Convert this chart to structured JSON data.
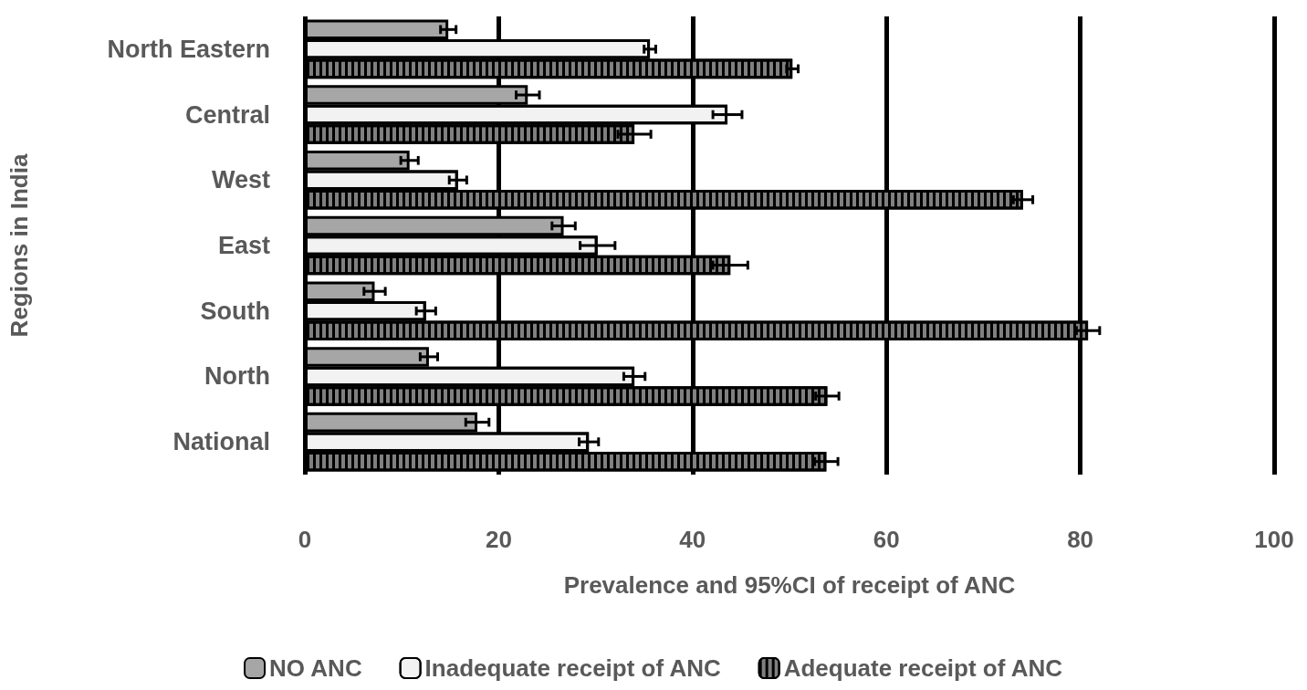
{
  "chart_data": {
    "type": "bar",
    "orientation": "horizontal",
    "xlabel": "Prevalence and 95%CI of receipt of ANC",
    "ylabel": "Regions in India",
    "categories": [
      "North Eastern",
      "Central",
      "West",
      "East",
      "South",
      "North",
      "National"
    ],
    "series": [
      {
        "name": "NO ANC",
        "color": "#a6a6a6",
        "values": [
          14.8,
          23.0,
          10.8,
          26.7,
          7.2,
          12.8,
          17.8
        ],
        "errors": [
          0.8,
          1.2,
          0.9,
          1.2,
          1.1,
          0.9,
          1.2
        ]
      },
      {
        "name": "Inadequate receipt of ANC",
        "color": "#f2f2f2",
        "values": [
          35.6,
          43.6,
          15.8,
          30.2,
          12.5,
          34.0,
          29.3
        ],
        "errors": [
          0.6,
          1.5,
          0.9,
          1.8,
          1.0,
          1.1,
          1.0
        ]
      },
      {
        "name": "Adequate receipt of ANC",
        "color": "#808080",
        "values": [
          50.3,
          34.0,
          74.1,
          43.9,
          80.8,
          53.9,
          53.8
        ],
        "errors": [
          0.6,
          1.7,
          1.0,
          1.8,
          1.2,
          1.2,
          1.2
        ]
      }
    ],
    "xlim": [
      0,
      100
    ],
    "xticks": [
      0,
      20,
      40,
      60,
      80,
      100
    ],
    "grid": "x",
    "legend": "bottom"
  }
}
